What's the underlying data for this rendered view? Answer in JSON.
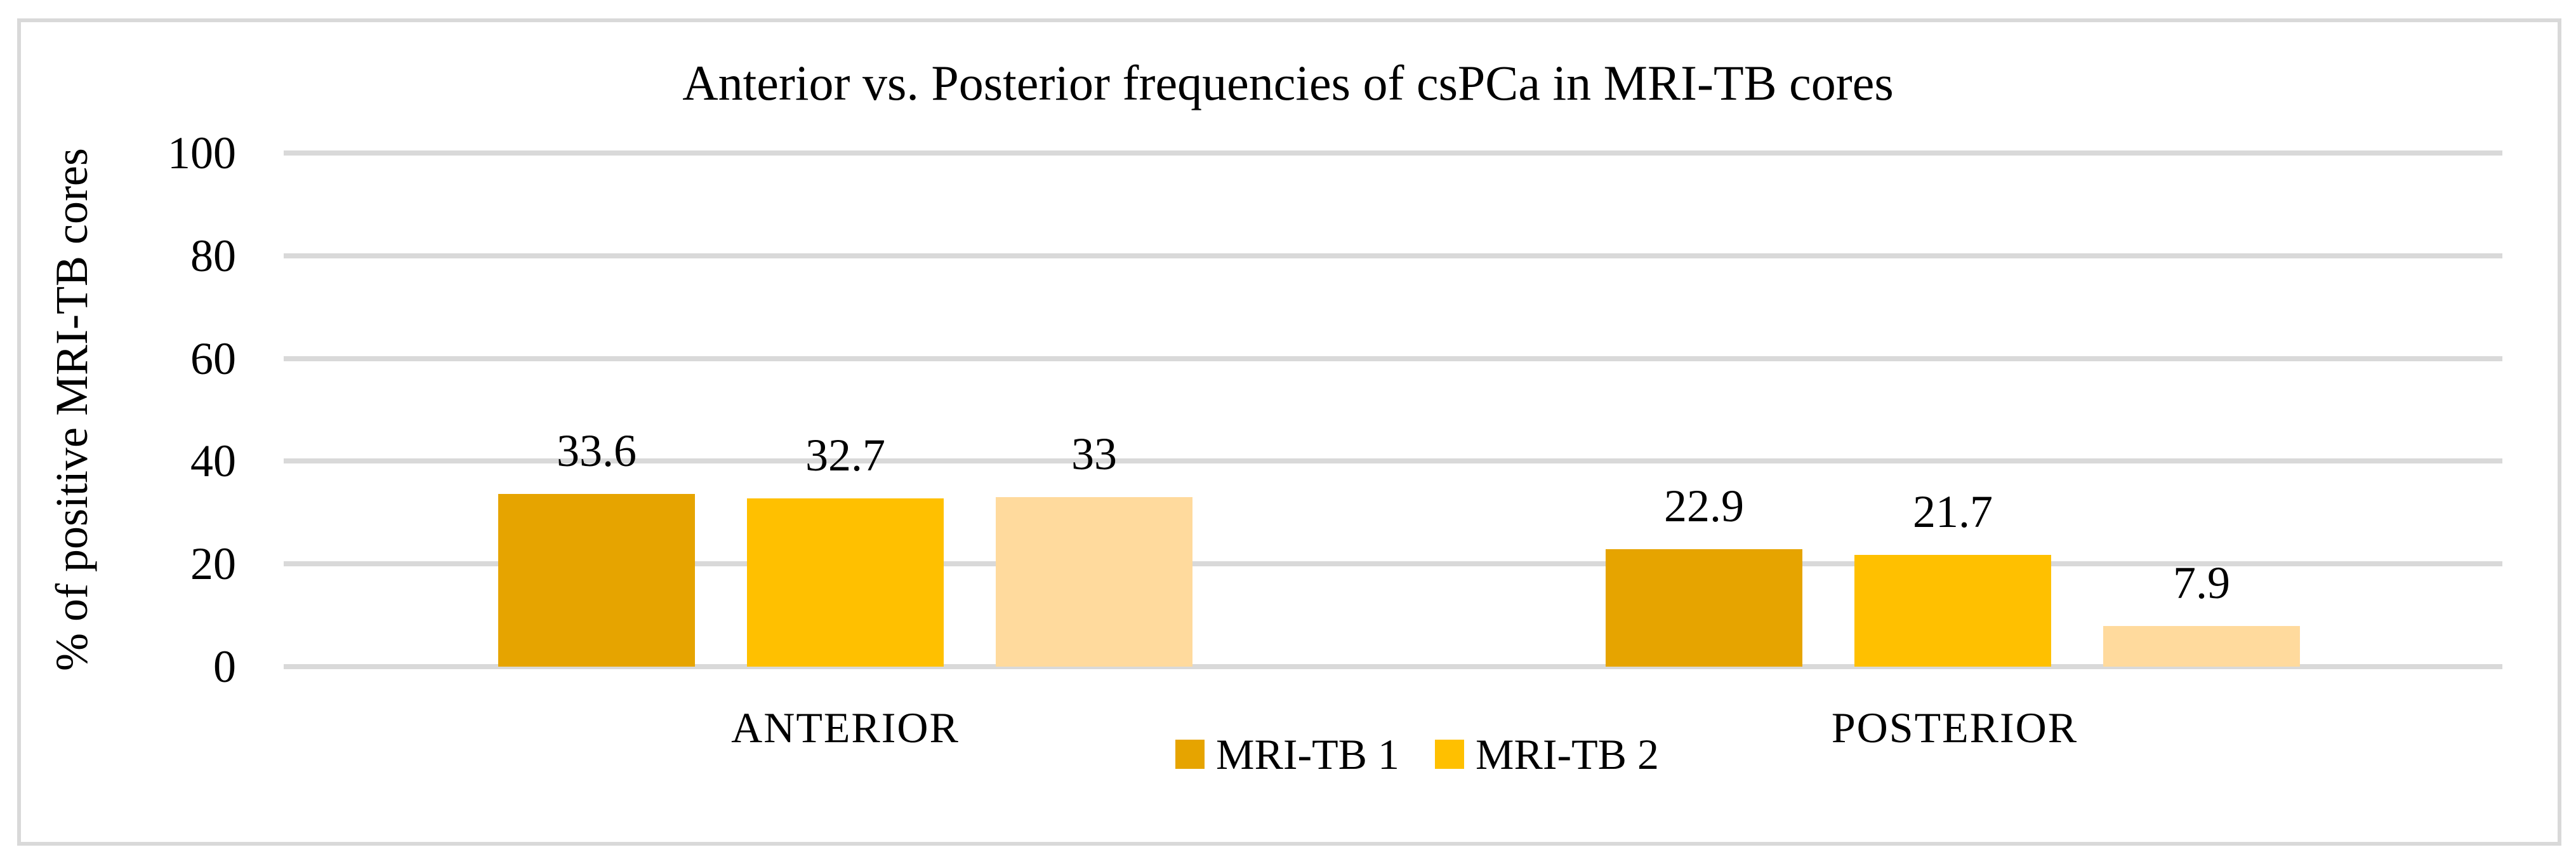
{
  "chart_data": {
    "type": "bar",
    "title": "Anterior vs. Posterior frequencies of csPCa in MRI-TB cores",
    "ylabel": "% of positive MRI-TB cores",
    "xlabel": "",
    "categories": [
      "ANTERIOR",
      "POSTERIOR"
    ],
    "series": [
      {
        "name": "MRI-TB 1",
        "color": "#E6A400",
        "values": [
          33.6,
          22.9
        ],
        "value_labels": [
          "33.6",
          "22.9"
        ]
      },
      {
        "name": "MRI-TB 2",
        "color": "#FFC000",
        "values": [
          32.7,
          21.7
        ],
        "value_labels": [
          "32.7",
          "21.7"
        ]
      },
      {
        "name": "",
        "color": "#FFDA9D",
        "values": [
          33,
          7.9
        ],
        "value_labels": [
          "33",
          "7.9"
        ]
      }
    ],
    "legend": {
      "position": "bottom-center",
      "entries": [
        {
          "label": "MRI-TB 1",
          "color": "#E6A400"
        },
        {
          "label": "MRI-TB 2",
          "color": "#FFC000"
        }
      ]
    },
    "ylim": [
      0,
      100
    ],
    "yticks": [
      0,
      20,
      40,
      60,
      80,
      100
    ],
    "grid": true,
    "gridline_color": "#D9D9D9",
    "frame_color": "#D9D9D9",
    "background": "#FFFFFF",
    "text_color": "#000000"
  }
}
